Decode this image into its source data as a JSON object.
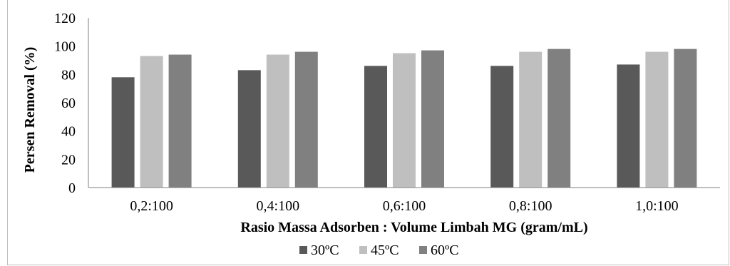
{
  "chart_data": {
    "type": "bar",
    "title": "",
    "xlabel": "Rasio Massa Adsorben : Volume Limbah MG (gram/mL)",
    "ylabel": "Persen Removal (%)",
    "categories": [
      "0,2:100",
      "0,4:100",
      "0,6:100",
      "0,8:100",
      "1,0:100"
    ],
    "ylim": [
      0,
      120
    ],
    "yticks": [
      0,
      20,
      40,
      60,
      80,
      100,
      120
    ],
    "grid": false,
    "legend_position": "bottom",
    "series": [
      {
        "name": "30ºC",
        "color": "#595959",
        "values": [
          78,
          83,
          86,
          86,
          87
        ]
      },
      {
        "name": "45ºC",
        "color": "#bfbfbf",
        "values": [
          93,
          94,
          95,
          96,
          96
        ]
      },
      {
        "name": "60ºC",
        "color": "#808080",
        "values": [
          94,
          96,
          97,
          98,
          98
        ]
      }
    ]
  }
}
